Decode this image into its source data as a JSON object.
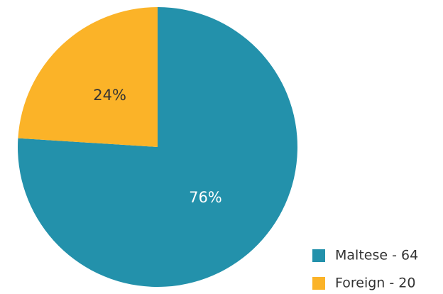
{
  "chart_data": {
    "type": "pie",
    "categories": [
      "Maltese - 64",
      "Foreign - 20"
    ],
    "values": [
      76,
      24
    ],
    "value_labels": [
      "76%",
      "24%"
    ],
    "colors": [
      "#2391ab",
      "#fbb328"
    ],
    "label_colors": [
      "#ffffff",
      "#333333"
    ]
  }
}
